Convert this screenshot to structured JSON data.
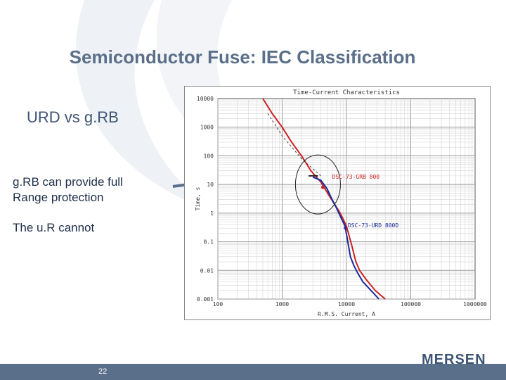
{
  "slide": {
    "title": "Semiconductor Fuse: IEC Classification",
    "subtitle": "URD vs g.RB",
    "text1": "g.RB can provide full Range protection",
    "text2": "The u.R cannot",
    "page_number": "22",
    "logo": "MERSEN",
    "colors": {
      "title": "#5a6f89",
      "footer": "#5a6f89",
      "arrow": "#5a6f89"
    }
  },
  "chart_data": {
    "type": "line",
    "title": "Time-Current Characteristics",
    "xlabel": "R.M.S. Current, A",
    "ylabel": "Time, s",
    "x_scale": "log",
    "y_scale": "log",
    "xlim": [
      100,
      1000000
    ],
    "ylim": [
      0.001,
      10000
    ],
    "x_ticks": [
      "100",
      "1000",
      "10000",
      "100000",
      "1000000"
    ],
    "y_ticks": [
      "10000",
      "1000",
      "100",
      "10",
      "1",
      "0.1",
      "0.01",
      "0.001"
    ],
    "grid": true,
    "series": [
      {
        "name": "DSC-73-GRB 800",
        "color": "#cc2222",
        "x": [
          500,
          700,
          1000,
          1400,
          2000,
          2800,
          4000,
          5600,
          8000,
          10000,
          12000,
          14000,
          16000,
          20000,
          28000,
          40000
        ],
        "y": [
          10000,
          3000,
          1000,
          300,
          100,
          30,
          12,
          3.5,
          1,
          0.35,
          0.08,
          0.02,
          0.01,
          0.005,
          0.002,
          0.001
        ]
      },
      {
        "name": "DSC-73-URD 800D",
        "color": "#1a2a9a",
        "x": [
          3000,
          4000,
          5000,
          5600,
          7000,
          8000,
          9500,
          10500,
          11500,
          13000,
          15000,
          18000,
          24000,
          32000
        ],
        "y": [
          18,
          14,
          7,
          4,
          1.5,
          0.8,
          0.35,
          0.1,
          0.03,
          0.015,
          0.008,
          0.004,
          0.002,
          0.001
        ]
      },
      {
        "name": "",
        "color": "#444444",
        "dashed": true,
        "x": [
          600,
          1000,
          2000,
          4000
        ],
        "y": [
          3000,
          500,
          80,
          20
        ]
      }
    ],
    "annotations": [
      "DSC-73-GRB 800",
      "DSC-73-URD 800D"
    ]
  }
}
